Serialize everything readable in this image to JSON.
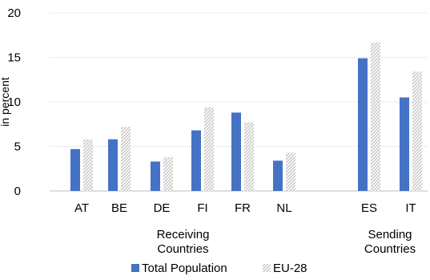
{
  "chart_data": {
    "type": "bar",
    "categories": [
      "AT",
      "BE",
      "DE",
      "FI",
      "FR",
      "NL",
      "ES",
      "IT"
    ],
    "series": [
      {
        "name": "Total Population",
        "values": [
          4.7,
          5.8,
          3.3,
          6.8,
          8.8,
          3.4,
          14.9,
          10.5
        ]
      },
      {
        "name": "EU-28",
        "values": [
          5.8,
          7.2,
          3.8,
          9.4,
          7.7,
          4.3,
          16.7,
          13.4
        ]
      }
    ],
    "groups": [
      {
        "label_lines": [
          "Receiving",
          "Countries"
        ],
        "categories": [
          "AT",
          "BE",
          "DE",
          "FI",
          "FR",
          "NL"
        ]
      },
      {
        "label_lines": [
          "Sending",
          "Countries"
        ],
        "categories": [
          "ES",
          "IT"
        ]
      }
    ],
    "xlabel": "",
    "ylabel": "in percent",
    "ylim": [
      0,
      20
    ],
    "yticks": [
      0,
      5,
      10,
      15,
      20
    ],
    "grid": true,
    "legend": "bottom",
    "colors": {
      "series_1": "#4472C4",
      "series_2_pattern_fg": "#BFBFBF",
      "series_2_pattern_bg": "#FFFFFF",
      "grid": "#D9D9D9",
      "axis": "#BFBFBF"
    }
  }
}
